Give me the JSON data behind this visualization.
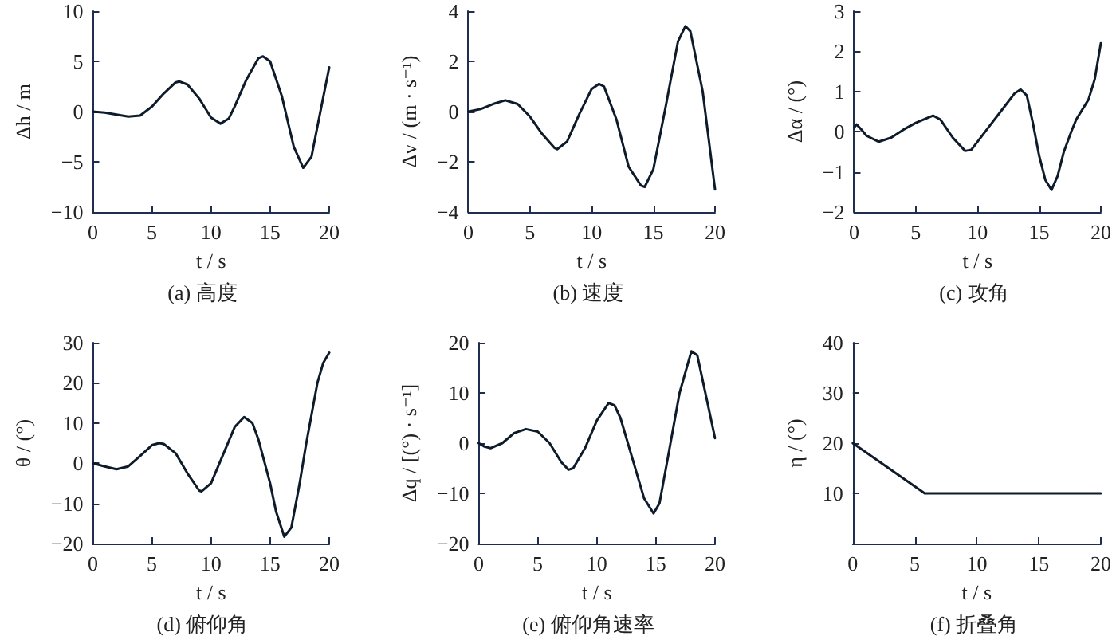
{
  "chart_data": [
    {
      "type": "line",
      "title": "(a) 高度",
      "xlabel": "t / s",
      "ylabel": "Δh / m",
      "xlim": [
        0,
        20
      ],
      "xticks": [
        0,
        5,
        10,
        15,
        20
      ],
      "ylim": [
        -10,
        10
      ],
      "yticks": [
        -10,
        -5,
        0,
        5,
        10
      ],
      "color": "#0d1b2a",
      "marker": "none",
      "line_style": "solid",
      "x": [
        0,
        1,
        2,
        3,
        4,
        5,
        6,
        7,
        7.3,
        8,
        9,
        10,
        10.8,
        11.5,
        12,
        13,
        14,
        14.4,
        15,
        16,
        17,
        17.8,
        18.5,
        19,
        20
      ],
      "values": [
        0,
        -0.1,
        -0.3,
        -0.5,
        -0.4,
        0.5,
        1.8,
        2.9,
        3.0,
        2.7,
        1.3,
        -0.6,
        -1.2,
        -0.7,
        0.5,
        3.2,
        5.3,
        5.5,
        5.0,
        1.5,
        -3.5,
        -5.6,
        -4.5,
        -1.5,
        4.4
      ]
    },
    {
      "type": "line",
      "title": "(b) 速度",
      "xlabel": "t / s",
      "ylabel": "Δv / (m · s⁻¹)",
      "xlim": [
        0,
        20
      ],
      "xticks": [
        0,
        5,
        10,
        15,
        20
      ],
      "ylim": [
        -4,
        4
      ],
      "yticks": [
        -4,
        -2,
        0,
        2,
        4
      ],
      "color": "#0d1b2a",
      "marker": "none",
      "line_style": "solid",
      "x": [
        0,
        1,
        2,
        3,
        4,
        5,
        6,
        7,
        7.2,
        8,
        9,
        10,
        10.6,
        11,
        12,
        13,
        14,
        14.3,
        15,
        16,
        17,
        17.6,
        18,
        19,
        20
      ],
      "values": [
        0,
        0.1,
        0.3,
        0.45,
        0.3,
        -0.2,
        -0.9,
        -1.45,
        -1.5,
        -1.2,
        -0.1,
        0.9,
        1.1,
        1.0,
        -0.3,
        -2.2,
        -2.95,
        -3.0,
        -2.3,
        0.2,
        2.8,
        3.4,
        3.2,
        0.8,
        -3.1
      ]
    },
    {
      "type": "line",
      "title": "(c) 攻角",
      "xlabel": "t / s",
      "ylabel": "Δα / (°)",
      "xlim": [
        0,
        20
      ],
      "xticks": [
        0,
        5,
        10,
        15,
        20
      ],
      "ylim": [
        -2,
        3
      ],
      "yticks": [
        -2,
        -1,
        0,
        1,
        2,
        3
      ],
      "color": "#0d1b2a",
      "marker": "none",
      "line_style": "solid",
      "x": [
        0,
        0.2,
        0.6,
        1,
        2,
        3,
        4,
        5,
        6,
        6.4,
        7,
        8,
        9,
        9.5,
        10,
        11,
        12,
        13,
        13.5,
        14,
        14.5,
        15,
        15.5,
        16,
        16.5,
        17,
        17.6,
        18,
        19,
        19.5,
        20
      ],
      "values": [
        0.1,
        0.18,
        0.05,
        -0.1,
        -0.25,
        -0.15,
        0.05,
        0.22,
        0.35,
        0.4,
        0.3,
        -0.15,
        -0.48,
        -0.45,
        -0.25,
        0.15,
        0.55,
        0.95,
        1.05,
        0.9,
        0.2,
        -0.6,
        -1.2,
        -1.45,
        -1.1,
        -0.5,
        0,
        0.3,
        0.8,
        1.3,
        2.2
      ]
    },
    {
      "type": "line",
      "title": "(d) 俯仰角",
      "xlabel": "t / s",
      "ylabel": "θ / (°)",
      "xlim": [
        0,
        20
      ],
      "xticks": [
        0,
        5,
        10,
        15,
        20
      ],
      "ylim": [
        -20,
        30
      ],
      "yticks": [
        -20,
        -10,
        0,
        10,
        20,
        30
      ],
      "color": "#0d1b2a",
      "marker": "none",
      "line_style": "solid",
      "x": [
        0,
        1,
        2,
        3,
        4,
        5,
        5.6,
        6,
        7,
        8,
        9,
        9.2,
        10,
        11,
        12,
        12.8,
        13.5,
        14,
        15,
        15.5,
        16.2,
        16.8,
        17.5,
        18,
        19,
        19.5,
        20
      ],
      "values": [
        0,
        -0.8,
        -1.5,
        -0.8,
        1.8,
        4.5,
        5,
        4.8,
        2.5,
        -2.5,
        -6.8,
        -7,
        -5,
        2,
        9,
        11.5,
        10,
        6,
        -5,
        -12,
        -18.3,
        -16,
        -5,
        4,
        20,
        25,
        27.5
      ]
    },
    {
      "type": "line",
      "title": "(e) 俯仰角速率",
      "xlabel": "t / s",
      "ylabel": "Δq / [(°) · s⁻¹]",
      "xlim": [
        0,
        20
      ],
      "xticks": [
        0,
        5,
        10,
        15,
        20
      ],
      "ylim": [
        -20,
        20
      ],
      "yticks": [
        -20,
        -10,
        0,
        10,
        20
      ],
      "color": "#0d1b2a",
      "marker": "none",
      "line_style": "solid",
      "x": [
        0,
        0.5,
        1,
        2,
        3,
        4,
        5,
        6,
        7,
        7.6,
        8,
        9,
        10,
        11,
        11.5,
        12,
        13,
        14,
        14.8,
        15.3,
        16,
        17,
        18,
        18.5,
        19,
        20
      ],
      "values": [
        0,
        -0.7,
        -1,
        0,
        2,
        2.8,
        2.3,
        0,
        -3.8,
        -5.3,
        -5,
        -1,
        4.5,
        8,
        7.5,
        5,
        -3,
        -11,
        -14,
        -12,
        -3,
        10,
        18.3,
        17.5,
        12,
        1
      ]
    },
    {
      "type": "line",
      "title": "(f) 折叠角",
      "xlabel": "t / s",
      "ylabel": "η / (°)",
      "xlim": [
        0,
        20
      ],
      "xticks": [
        0,
        5,
        10,
        15,
        20
      ],
      "ylim": [
        0,
        40
      ],
      "yticks": [
        10,
        20,
        30,
        40
      ],
      "color": "#0d1b2a",
      "marker": "none",
      "line_style": "solid",
      "x": [
        0,
        5.8,
        20
      ],
      "values": [
        20,
        10,
        10
      ]
    }
  ]
}
